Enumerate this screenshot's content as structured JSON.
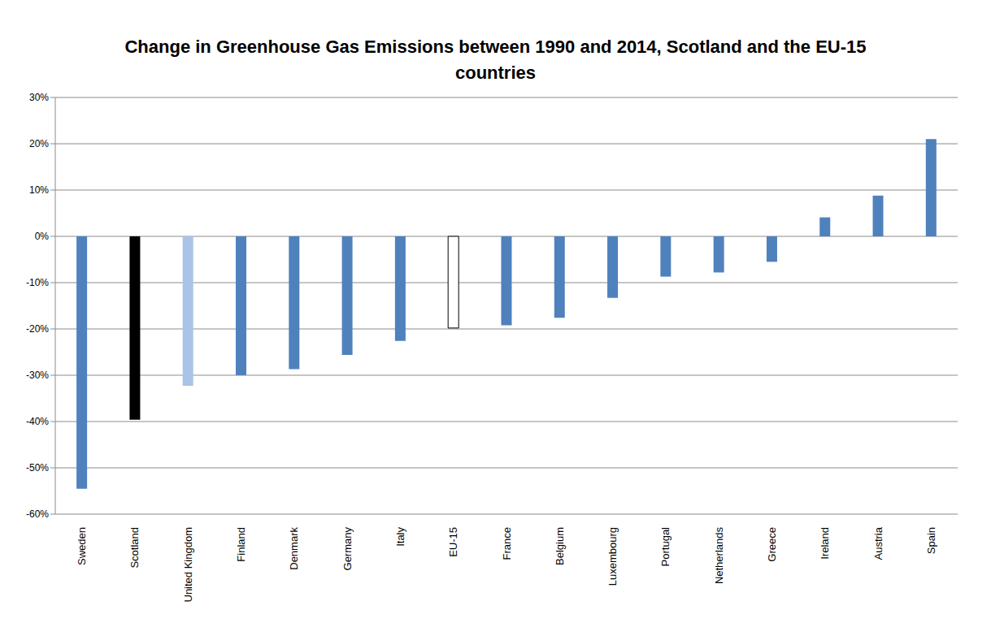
{
  "chart_data": {
    "type": "bar",
    "title": "Change in Greenhouse Gas Emissions between 1990 and 2014, Scotland and the EU-15 countries",
    "categories": [
      "Sweden",
      "Scotland",
      "United Kingdom",
      "Finland",
      "Denmark",
      "Germany",
      "Italy",
      "EU-15",
      "France",
      "Belgium",
      "Luxembourg",
      "Portugal",
      "Netherlands",
      "Greece",
      "Ireland",
      "Austria",
      "Spain"
    ],
    "values": [
      -54.5,
      -39.6,
      -32.3,
      -30,
      -28.7,
      -25.6,
      -22.6,
      -19.8,
      -19.2,
      -17.6,
      -13.3,
      -8.7,
      -7.8,
      -5.5,
      4.1,
      8.8,
      21
    ],
    "colors": [
      "#4f81bd",
      "#000000",
      "#a9c4e6",
      "#4f81bd",
      "#4f81bd",
      "#4f81bd",
      "#4f81bd",
      "#ffffff",
      "#4f81bd",
      "#4f81bd",
      "#4f81bd",
      "#4f81bd",
      "#4f81bd",
      "#4f81bd",
      "#4f81bd",
      "#4f81bd",
      "#4f81bd"
    ],
    "ylim": [
      -60,
      30
    ],
    "yticks": [
      {
        "value": -60,
        "label": "-60%"
      },
      {
        "value": -50,
        "label": "-50%"
      },
      {
        "value": -40,
        "label": "-40%"
      },
      {
        "value": -30,
        "label": "-30%"
      },
      {
        "value": -20,
        "label": "-20%"
      },
      {
        "value": -10,
        "label": "-10%"
      },
      {
        "value": 0,
        "label": "0%"
      },
      {
        "value": 10,
        "label": "10%"
      },
      {
        "value": 20,
        "label": "20%"
      },
      {
        "value": 30,
        "label": "30%"
      }
    ],
    "grid": true
  }
}
